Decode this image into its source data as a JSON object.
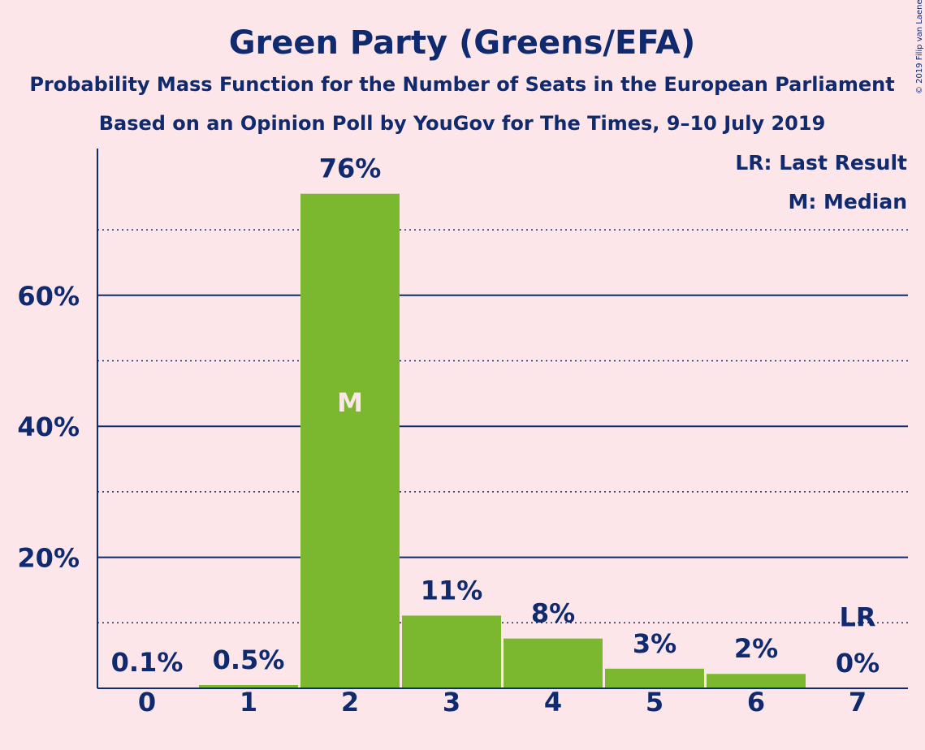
{
  "chart_data": {
    "type": "bar",
    "title": "Green Party (Greens/EFA)",
    "subtitle": "Probability Mass Function for the Number of Seats in the European Parliament",
    "subtitle2": "Based on an Opinion Poll by YouGov for The Times, 9–10 July 2019",
    "copyright": "© 2019 Filip van Laenen",
    "legend": {
      "placement": "top-right",
      "entries": [
        "LR: Last Result",
        "M: Median"
      ]
    },
    "categories": [
      "0",
      "1",
      "2",
      "3",
      "4",
      "5",
      "6",
      "7"
    ],
    "values": [
      0.1,
      0.5,
      75.5,
      11.1,
      7.6,
      3.0,
      2.2,
      0
    ],
    "data_labels": [
      "0.1%",
      "0.5%",
      "76%",
      "11%",
      "8%",
      "3%",
      "2%",
      "0%"
    ],
    "median_category": "2",
    "median_label": "M",
    "last_result_category": "7",
    "last_result_label": "LR",
    "ylim": [
      0,
      82
    ],
    "yticks": [
      20,
      40,
      60
    ],
    "ytick_labels": [
      "20%",
      "40%",
      "60%"
    ],
    "minor_gridlines": [
      10,
      30,
      50,
      70
    ],
    "grid": true,
    "xlabel": "",
    "ylabel": "",
    "colors": {
      "background": "#fde6ea",
      "bar": "#7cb82f",
      "text": "#0f2a6e",
      "grid": "#0f2a6e"
    }
  }
}
